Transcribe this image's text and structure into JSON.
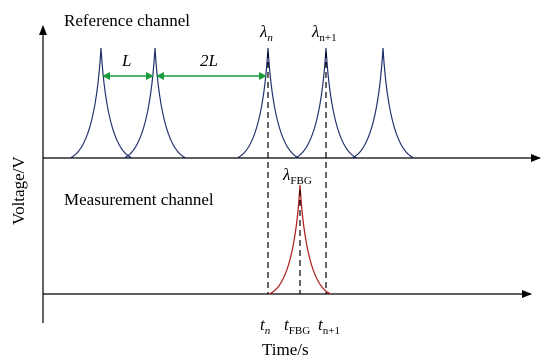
{
  "reference_channel_label": "Reference channel",
  "measurement_channel_label": "Measurement channel",
  "y_axis_label": "Voltage/V",
  "x_axis_label": "Time/s",
  "spacing_labels": {
    "single": "L",
    "double": "2L"
  },
  "wavelength_labels": {
    "n": {
      "base": "λ",
      "sub": "n"
    },
    "n_plus_1": {
      "base": "λ",
      "sub": "n+1"
    },
    "fbg": {
      "base": "λ",
      "sub": "FBG"
    }
  },
  "time_labels": {
    "t_n": {
      "base": "t",
      "sub": "n"
    },
    "t_fbg": {
      "base": "t",
      "sub": "FBG"
    },
    "t_n_plus_1": {
      "base": "t",
      "sub": "n+1"
    }
  },
  "colors": {
    "reference_peaks": "#1f2f6b",
    "measurement_peak": "#b22222",
    "spacing_arrows": "#1a9b3c"
  }
}
